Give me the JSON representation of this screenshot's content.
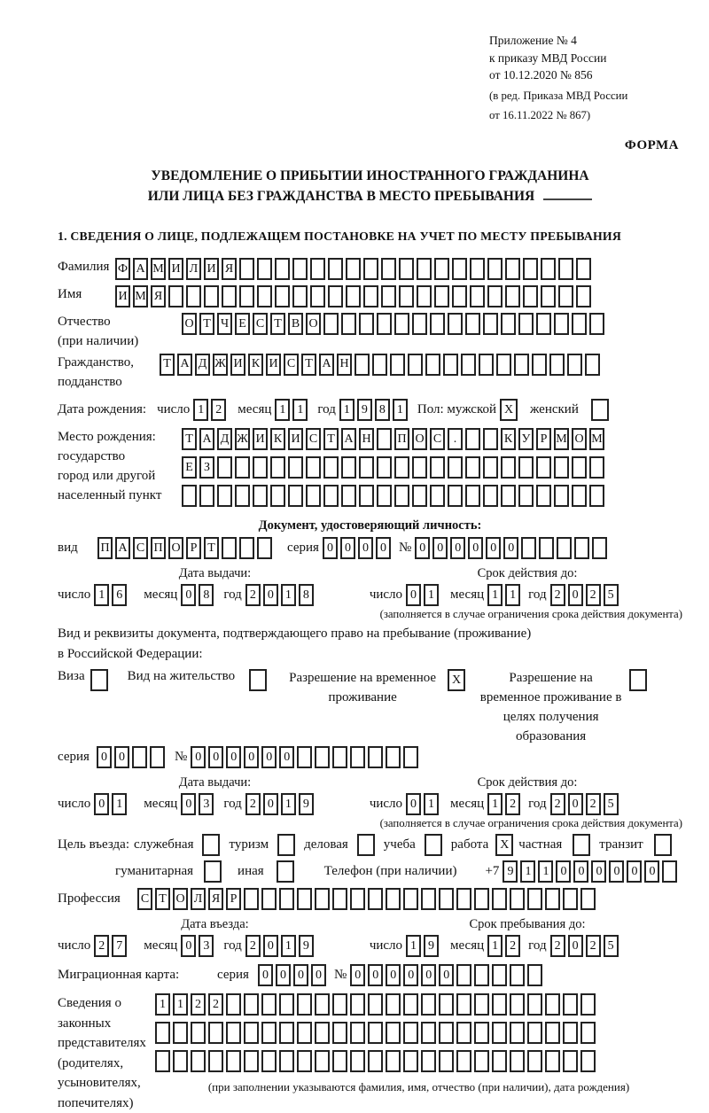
{
  "header": {
    "appendix_line1": "Приложение № 4",
    "appendix_line2": "к приказу МВД России",
    "appendix_line3": "от 10.12.2020 № 856",
    "revision_line1": "(в ред. Приказа МВД России",
    "revision_line2": "от 16.11.2022 № 867)",
    "form_label": "ФОРМА"
  },
  "title": {
    "line1": "УВЕДОМЛЕНИЕ О ПРИБЫТИИ ИНОСТРАННОГО ГРАЖДАНИНА",
    "line2": "ИЛИ ЛИЦА БЕЗ ГРАЖДАНСТВА В МЕСТО ПРЕБЫВАНИЯ"
  },
  "section1_heading": "1. СВЕДЕНИЯ О ЛИЦЕ, ПОДЛЕЖАЩЕМ ПОСТАНОВКЕ НА УЧЕТ ПО МЕСТУ ПРЕБЫВАНИЯ",
  "surname": {
    "label": "Фамилия",
    "cells": {
      "filled": "ФАМИЛИЯ",
      "total": 27
    }
  },
  "name": {
    "label": "Имя",
    "cells": {
      "filled": "ИМЯ",
      "total": 27
    }
  },
  "patronymic": {
    "label1": "Отчество",
    "label2": "(при наличии)",
    "cells": {
      "filled": "ОТЧЕСТВО",
      "total": 24
    }
  },
  "citizenship": {
    "label1": "Гражданство,",
    "label2": "подданство",
    "cells": {
      "filled": "ТАДЖИКИСТАН",
      "total": 25
    }
  },
  "birth_date": {
    "label": "Дата рождения:",
    "day_label": "число",
    "day": {
      "filled": "12",
      "total": 2
    },
    "month_label": "месяц",
    "month": {
      "filled": "11",
      "total": 2
    },
    "year_label": "год",
    "year": {
      "filled": "1981",
      "total": 4
    },
    "sex_label": "Пол: мужской",
    "male_value": "X",
    "female_label": "женский",
    "female_value": ""
  },
  "birth_place": {
    "label_line1": "Место рождения:",
    "label_line2": "государство",
    "label_line3": "город или другой",
    "label_line4": "населенный пункт",
    "row1": {
      "filled": "ТАДЖИКИСТАН ПОС.  КУРМОМБ",
      "total": 24
    },
    "row2": {
      "filled": "ЕЗ",
      "total": 24
    },
    "row3": {
      "filled": "",
      "total": 24
    }
  },
  "identity_doc": {
    "heading": "Документ, удостоверяющий личность:",
    "type_label": "вид",
    "type_cells": {
      "filled": "ПАСПОРТ",
      "total": 10
    },
    "series_label": "серия",
    "series_cells": {
      "filled": "0000",
      "total": 4
    },
    "number_label": "№",
    "number_cells": {
      "filled": "000000",
      "total": 11
    },
    "issue_heading": "Дата выдачи:",
    "issue": {
      "day_label": "число",
      "day": {
        "filled": "16",
        "total": 2
      },
      "month_label": "месяц",
      "month": {
        "filled": "08",
        "total": 2
      },
      "year_label": "год",
      "year": {
        "filled": "2018",
        "total": 4
      }
    },
    "valid_heading": "Срок действия до:",
    "valid": {
      "day_label": "число",
      "day": {
        "filled": "01",
        "total": 2
      },
      "month_label": "месяц",
      "month": {
        "filled": "11",
        "total": 2
      },
      "year_label": "год",
      "year": {
        "filled": "2025",
        "total": 4
      }
    },
    "note": "(заполняется в случае ограничения срока действия документа)"
  },
  "residence_doc": {
    "intro_line1": "Вид и реквизиты документа, подтверждающего право на пребывание (проживание)",
    "intro_line2": "в Российской Федерации:",
    "visa_label": "Виза",
    "visa_value": "",
    "residence_permit_label": "Вид на жительство",
    "residence_permit_value": "",
    "temp_permit_label": "Разрешение на временное проживание",
    "temp_permit_value": "X",
    "temp_edu_label": "Разрешение на временное проживание в целях получения образования",
    "temp_edu_value": "",
    "series_label": "серия",
    "series_cells": {
      "filled": "00",
      "total": 4
    },
    "number_label": "№",
    "number_cells": {
      "filled": "000000",
      "total": 13
    },
    "issue_heading": "Дата выдачи:",
    "issue": {
      "day_label": "число",
      "day": {
        "filled": "01",
        "total": 2
      },
      "month_label": "месяц",
      "month": {
        "filled": "03",
        "total": 2
      },
      "year_label": "год",
      "year": {
        "filled": "2019",
        "total": 4
      }
    },
    "valid_heading": "Срок действия до:",
    "valid": {
      "day_label": "число",
      "day": {
        "filled": "01",
        "total": 2
      },
      "month_label": "месяц",
      "month": {
        "filled": "12",
        "total": 2
      },
      "year_label": "год",
      "year": {
        "filled": "2025",
        "total": 4
      }
    },
    "note": "(заполняется в случае ограничения срока действия документа)"
  },
  "purpose": {
    "label": "Цель въезда:",
    "opt_official": "служебная",
    "opt_official_value": "",
    "opt_tourism": "туризм",
    "opt_tourism_value": "",
    "opt_business": "деловая",
    "opt_business_value": "",
    "opt_study": "учеба",
    "opt_study_value": "",
    "opt_work": "работа",
    "opt_work_value": "X",
    "opt_private": "частная",
    "opt_private_value": "",
    "opt_transit": "транзит",
    "opt_transit_value": "",
    "opt_humanitarian": "гуманитарная",
    "opt_humanitarian_value": "",
    "opt_other": "иная",
    "opt_other_value": "",
    "phone_label": "Телефон (при наличии)",
    "phone_prefix": "+7",
    "phone_cells": {
      "filled": "911000000",
      "total": 10
    }
  },
  "profession": {
    "label": "Профессия",
    "cells": {
      "filled": "СТОЛЯР",
      "total": 26
    }
  },
  "entry": {
    "issue_heading": "Дата въезда:",
    "issue": {
      "day_label": "число",
      "day": {
        "filled": "27",
        "total": 2
      },
      "month_label": "месяц",
      "month": {
        "filled": "03",
        "total": 2
      },
      "year_label": "год",
      "year": {
        "filled": "2019",
        "total": 4
      }
    },
    "valid_heading": "Срок пребывания до:",
    "valid": {
      "day_label": "число",
      "day": {
        "filled": "19",
        "total": 2
      },
      "month_label": "месяц",
      "month": {
        "filled": "12",
        "total": 2
      },
      "year_label": "год",
      "year": {
        "filled": "2025",
        "total": 4
      }
    }
  },
  "migration_card": {
    "label": "Миграционная карта:",
    "series_label": "серия",
    "series_cells": {
      "filled": "0000",
      "total": 4
    },
    "number_label": "№",
    "number_cells": {
      "filled": "000000",
      "total": 11
    }
  },
  "representatives": {
    "label_line1": "Сведения о",
    "label_line2": "законных",
    "label_line3": "представителях",
    "label_line4": "(родителях,",
    "label_line5": "усыновителях,",
    "label_line6": "попечителях)",
    "row1": {
      "filled": "1122",
      "total": 25
    },
    "row2": {
      "filled": "",
      "total": 25
    },
    "row3": {
      "filled": "",
      "total": 25
    },
    "note": "(при заполнении указываются фамилия, имя, отчество (при наличии), дата рождения)"
  }
}
